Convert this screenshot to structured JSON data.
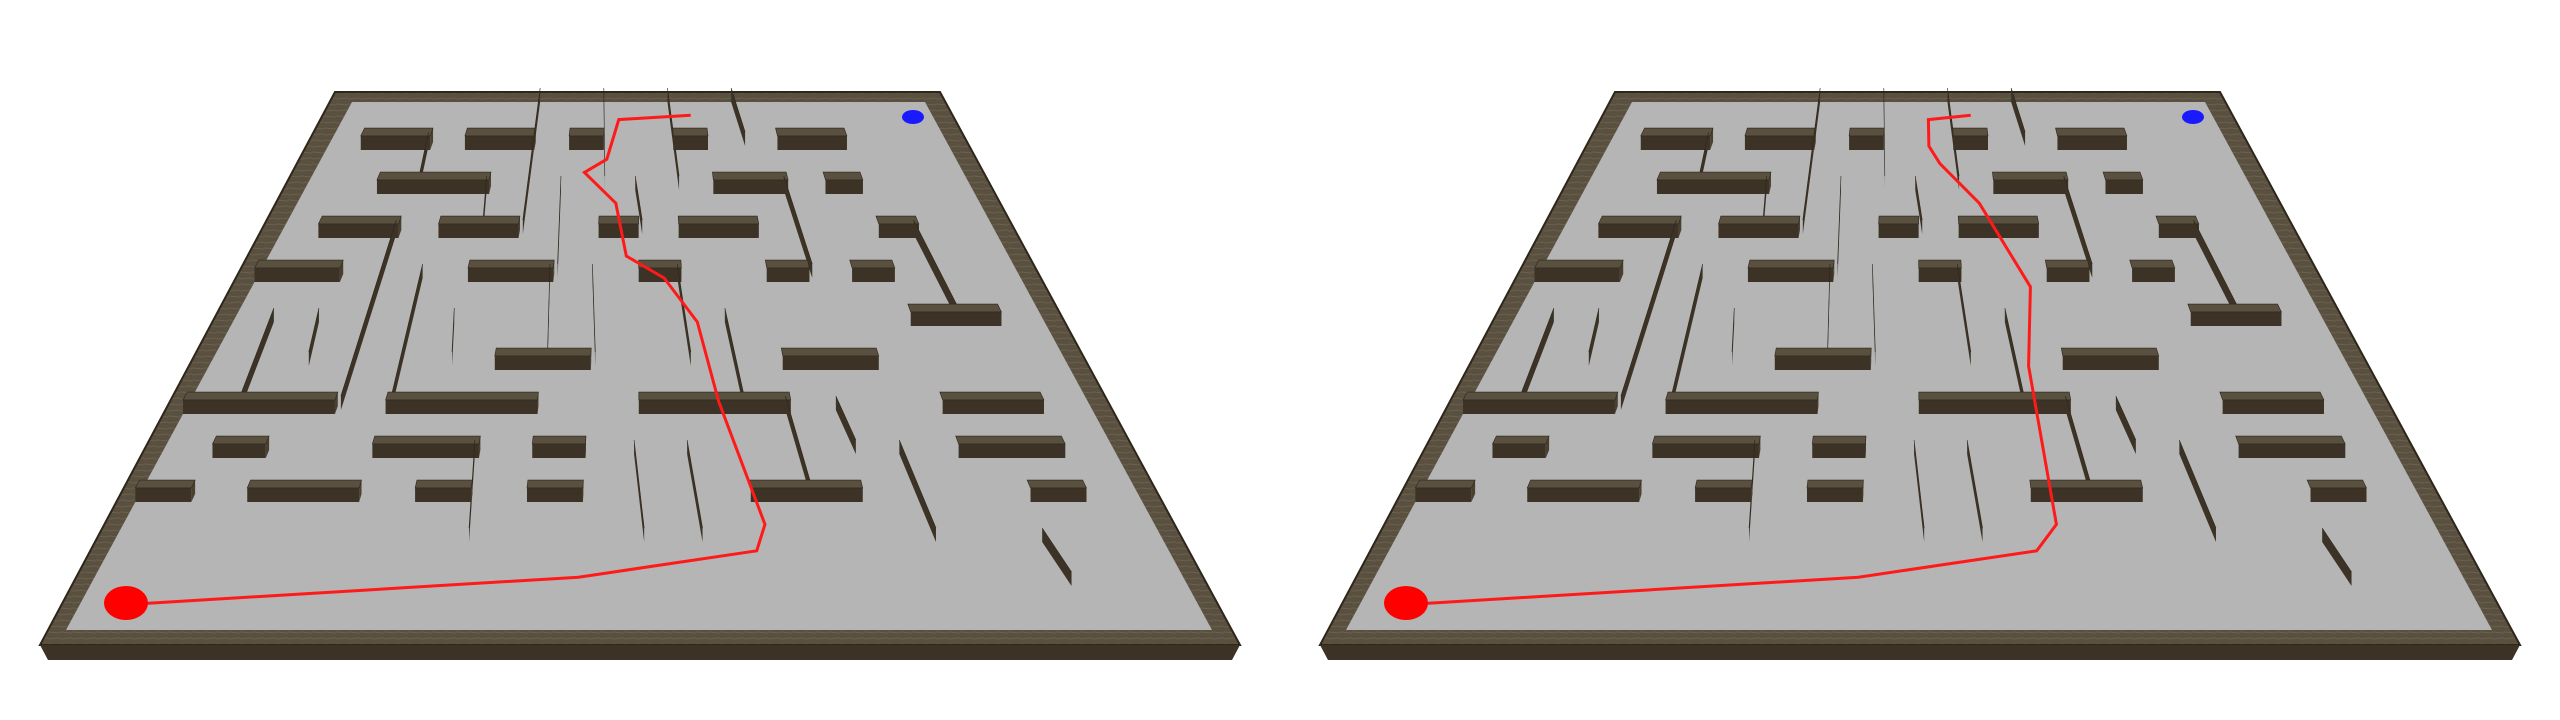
{
  "scene": {
    "panels": [
      {
        "id": "left",
        "path_variant": "left"
      },
      {
        "id": "right",
        "path_variant": "right"
      }
    ],
    "colors": {
      "background": "#ffffff",
      "floor": "#b5b5b5",
      "wall_top": "#5a5040",
      "wall_front": "#3c3326",
      "wall_side": "#4a4030",
      "path": "#ff1a1a",
      "start_marker": "#ff0000",
      "goal_marker": "#1a1aff"
    },
    "markers": {
      "start": "red-ellipse",
      "goal": "blue-ellipse"
    }
  }
}
